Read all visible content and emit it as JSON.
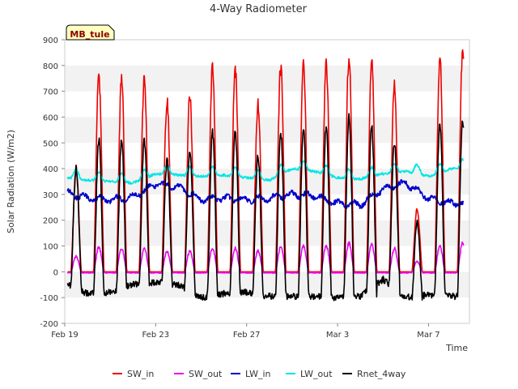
{
  "chart_data": {
    "type": "line",
    "title": "4-Way Radiometer",
    "xlabel": "Time",
    "ylabel": "Solar Radiation (W/m2)",
    "site_label": "MB_tule",
    "x_unit": "days since Feb 19",
    "xlim": [
      0,
      17.8
    ],
    "ylim": [
      -200,
      900
    ],
    "yticks": [
      -200,
      -100,
      0,
      100,
      200,
      300,
      400,
      500,
      600,
      700,
      800,
      900
    ],
    "xticks": [
      {
        "value": 0,
        "label": "Feb 19"
      },
      {
        "value": 4,
        "label": "Feb 23"
      },
      {
        "value": 8,
        "label": "Feb 27"
      },
      {
        "value": 12,
        "label": "Mar 3"
      },
      {
        "value": 16,
        "label": "Mar 7"
      }
    ],
    "grid": "alternating horizontal bands",
    "legend": "bottom",
    "series": [
      {
        "name": "SW_in",
        "color": "#ee0000"
      },
      {
        "name": "SW_out",
        "color": "#ee00ee"
      },
      {
        "name": "LW_in",
        "color": "#0000cc"
      },
      {
        "name": "LW_out",
        "color": "#00e5e5"
      },
      {
        "name": "Rnet_4way",
        "color": "#000000"
      }
    ],
    "daily": [
      {
        "day": 0,
        "sw_in_peak": 400,
        "sw_out_peak": 60,
        "lw_in": 310,
        "lw_out": 365,
        "rnet_peak": 400,
        "rnet_night": -45
      },
      {
        "day": 1,
        "sw_in_peak": 760,
        "sw_out_peak": 95,
        "lw_in": 285,
        "lw_out": 355,
        "rnet_peak": 515,
        "rnet_night": -85
      },
      {
        "day": 2,
        "sw_in_peak": 745,
        "sw_out_peak": 90,
        "lw_in": 280,
        "lw_out": 350,
        "rnet_peak": 510,
        "rnet_night": -80
      },
      {
        "day": 3,
        "sw_in_peak": 750,
        "sw_out_peak": 90,
        "lw_in": 290,
        "lw_out": 345,
        "rnet_peak": 510,
        "rnet_night": -50
      },
      {
        "day": 4,
        "sw_in_peak": 665,
        "sw_out_peak": 80,
        "lw_in": 340,
        "lw_out": 380,
        "rnet_peak": 430,
        "rnet_night": -40
      },
      {
        "day": 5,
        "sw_in_peak": 680,
        "sw_out_peak": 80,
        "lw_in": 330,
        "lw_out": 375,
        "rnet_peak": 470,
        "rnet_night": -50
      },
      {
        "day": 6,
        "sw_in_peak": 790,
        "sw_out_peak": 90,
        "lw_in": 280,
        "lw_out": 370,
        "rnet_peak": 540,
        "rnet_night": -100
      },
      {
        "day": 7,
        "sw_in_peak": 795,
        "sw_out_peak": 90,
        "lw_in": 285,
        "lw_out": 375,
        "rnet_peak": 540,
        "rnet_night": -85
      },
      {
        "day": 8,
        "sw_in_peak": 650,
        "sw_out_peak": 80,
        "lw_in": 280,
        "lw_out": 365,
        "rnet_peak": 450,
        "rnet_night": -80
      },
      {
        "day": 9,
        "sw_in_peak": 800,
        "sw_out_peak": 95,
        "lw_in": 285,
        "lw_out": 355,
        "rnet_peak": 540,
        "rnet_night": -95
      },
      {
        "day": 10,
        "sw_in_peak": 810,
        "sw_out_peak": 100,
        "lw_in": 300,
        "lw_out": 400,
        "rnet_peak": 550,
        "rnet_night": -95
      },
      {
        "day": 11,
        "sw_in_peak": 810,
        "sw_out_peak": 100,
        "lw_in": 295,
        "lw_out": 390,
        "rnet_peak": 560,
        "rnet_night": -95
      },
      {
        "day": 12,
        "sw_in_peak": 835,
        "sw_out_peak": 110,
        "lw_in": 265,
        "lw_out": 365,
        "rnet_peak": 600,
        "rnet_night": -100
      },
      {
        "day": 13,
        "sw_in_peak": 820,
        "sw_out_peak": 105,
        "lw_in": 260,
        "lw_out": 360,
        "rnet_peak": 565,
        "rnet_night": -95
      },
      {
        "day": 14,
        "sw_in_peak": 720,
        "sw_out_peak": 90,
        "lw_in": 320,
        "lw_out": 380,
        "rnet_peak": 500,
        "rnet_night": -30
      },
      {
        "day": 15,
        "sw_in_peak": 240,
        "sw_out_peak": 40,
        "lw_in": 345,
        "lw_out": 390,
        "rnet_peak": 200,
        "rnet_night": -100
      },
      {
        "day": 16,
        "sw_in_peak": 830,
        "sw_out_peak": 100,
        "lw_in": 285,
        "lw_out": 370,
        "rnet_peak": 580,
        "rnet_night": -90
      },
      {
        "day": 17,
        "sw_in_peak": 855,
        "sw_out_peak": 110,
        "lw_in": 265,
        "lw_out": 400,
        "rnet_peak": 590,
        "rnet_night": -95
      }
    ]
  }
}
